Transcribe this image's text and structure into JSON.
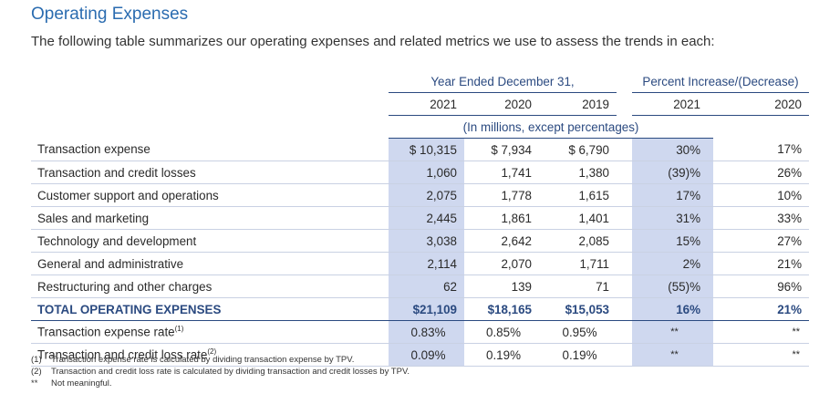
{
  "section": {
    "title": "Operating Expenses",
    "intro": "The following table summarizes our operating expenses and related metrics we use to assess the trends in each:"
  },
  "table": {
    "group_year": "Year Ended December 31,",
    "group_pct": "Percent Increase/(Decrease)",
    "years": [
      "2021",
      "2020",
      "2019"
    ],
    "pct_years": [
      "2021",
      "2020"
    ],
    "units_note": "(In millions, except percentages)",
    "rows": [
      {
        "label": "Transaction expense",
        "v2021": "$ 10,315",
        "v2020": "$ 7,934",
        "v2019": "$ 6,790",
        "p2021": "30%",
        "p2020": "17%"
      },
      {
        "label": "Transaction and credit losses",
        "v2021": "1,060",
        "v2020": "1,741",
        "v2019": "1,380",
        "p2021": "(39)%",
        "p2020": "26%"
      },
      {
        "label": "Customer support and operations",
        "v2021": "2,075",
        "v2020": "1,778",
        "v2019": "1,615",
        "p2021": "17%",
        "p2020": "10%"
      },
      {
        "label": "Sales and marketing",
        "v2021": "2,445",
        "v2020": "1,861",
        "v2019": "1,401",
        "p2021": "31%",
        "p2020": "33%"
      },
      {
        "label": "Technology and development",
        "v2021": "3,038",
        "v2020": "2,642",
        "v2019": "2,085",
        "p2021": "15%",
        "p2020": "27%"
      },
      {
        "label": "General and administrative",
        "v2021": "2,114",
        "v2020": "2,070",
        "v2019": "1,711",
        "p2021": "2%",
        "p2020": "21%"
      },
      {
        "label": "Restructuring and other charges",
        "v2021": "62",
        "v2020": "139",
        "v2019": "71",
        "p2021": "(55)%",
        "p2020": "96%"
      }
    ],
    "total": {
      "label": "TOTAL OPERATING EXPENSES",
      "v2021": "$21,109",
      "v2020": "$18,165",
      "v2019": "$15,053",
      "p2021": "16%",
      "p2020": "21%"
    },
    "rates": [
      {
        "label": "Transaction expense rate",
        "sup": "(1)",
        "v2021": "0.83%",
        "v2020": "0.85%",
        "v2019": "0.95%",
        "p2021": "**",
        "p2020": "**"
      },
      {
        "label": "Transaction and credit loss rate",
        "sup": "(2)",
        "v2021": "0.09%",
        "v2020": "0.19%",
        "v2019": "0.19%",
        "p2021": "**",
        "p2020": "**"
      }
    ]
  },
  "footnotes": [
    {
      "mark": "(1)",
      "text": "Transaction expense rate is calculated by dividing transaction expense by TPV."
    },
    {
      "mark": "(2)",
      "text": "Transaction and credit loss rate is calculated by dividing transaction and credit losses by TPV."
    },
    {
      "mark": "**",
      "text": "Not meaningful."
    }
  ],
  "colors": {
    "accent": "#2b6cb0",
    "header": "#2b4a80",
    "shade": "#cfd8ef"
  }
}
